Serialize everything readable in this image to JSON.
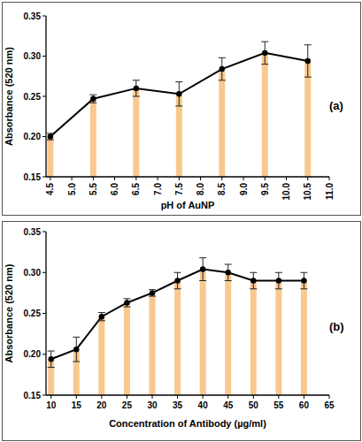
{
  "chart_data": [
    {
      "type": "bar",
      "x_label": "pH of AuNP",
      "y_label": "Absorbance (520 nm)",
      "panel_label": "(a)",
      "x": [
        4.5,
        5.5,
        6.5,
        7.5,
        8.5,
        9.5,
        10.5
      ],
      "values": [
        0.2,
        0.247,
        0.26,
        0.253,
        0.284,
        0.304,
        0.294
      ],
      "errors": [
        0.004,
        0.005,
        0.01,
        0.015,
        0.014,
        0.014,
        0.02
      ],
      "color": "#f9c88e",
      "marker": "circle",
      "line_style": "solid",
      "grid": false,
      "xlim": [
        4.4,
        11.0
      ],
      "xticks": [
        4.5,
        {
          "value": 5,
          "label": "5.0"
        },
        5.5,
        {
          "value": 6,
          "label": "6.0"
        },
        6.5,
        {
          "value": 7,
          "label": "7.0"
        },
        7.5,
        {
          "value": 8,
          "label": "8.0"
        },
        8.5,
        {
          "value": 9,
          "label": "9.0"
        },
        9.5,
        {
          "value": 10,
          "label": "10.0"
        },
        10.5,
        {
          "value": 11,
          "label": "11.0"
        }
      ],
      "ylim": [
        0.15,
        0.35
      ],
      "yticks": [
        0.15,
        {
          "value": 0.2,
          "label": "0.20"
        },
        0.25,
        {
          "value": 0.3,
          "label": "0.30"
        },
        0.35
      ]
    },
    {
      "type": "bar",
      "x_label": "Concentration of Antibody (µg/ml)",
      "y_label": "Absorbance (520 nm)",
      "panel_label": "(b)",
      "x": [
        10,
        15,
        20,
        25,
        30,
        35,
        40,
        45,
        50,
        55,
        60
      ],
      "values": [
        0.194,
        0.206,
        0.246,
        0.263,
        0.275,
        0.29,
        0.304,
        0.3,
        0.29,
        0.29,
        0.29
      ],
      "errors": [
        0.01,
        0.015,
        0.005,
        0.005,
        0.004,
        0.01,
        0.014,
        0.01,
        0.01,
        0.01,
        0.01
      ],
      "color": "#f9c88e",
      "marker": "circle",
      "line_style": "solid",
      "grid": false,
      "xlim": [
        9,
        65
      ],
      "xticks": [
        10,
        15,
        20,
        25,
        30,
        35,
        40,
        45,
        50,
        55,
        60,
        65
      ],
      "ylim": [
        0.15,
        0.35
      ],
      "yticks": [
        0.15,
        {
          "value": 0.2,
          "label": "0.20"
        },
        0.25,
        {
          "value": 0.3,
          "label": "0.30"
        },
        0.35
      ]
    }
  ]
}
